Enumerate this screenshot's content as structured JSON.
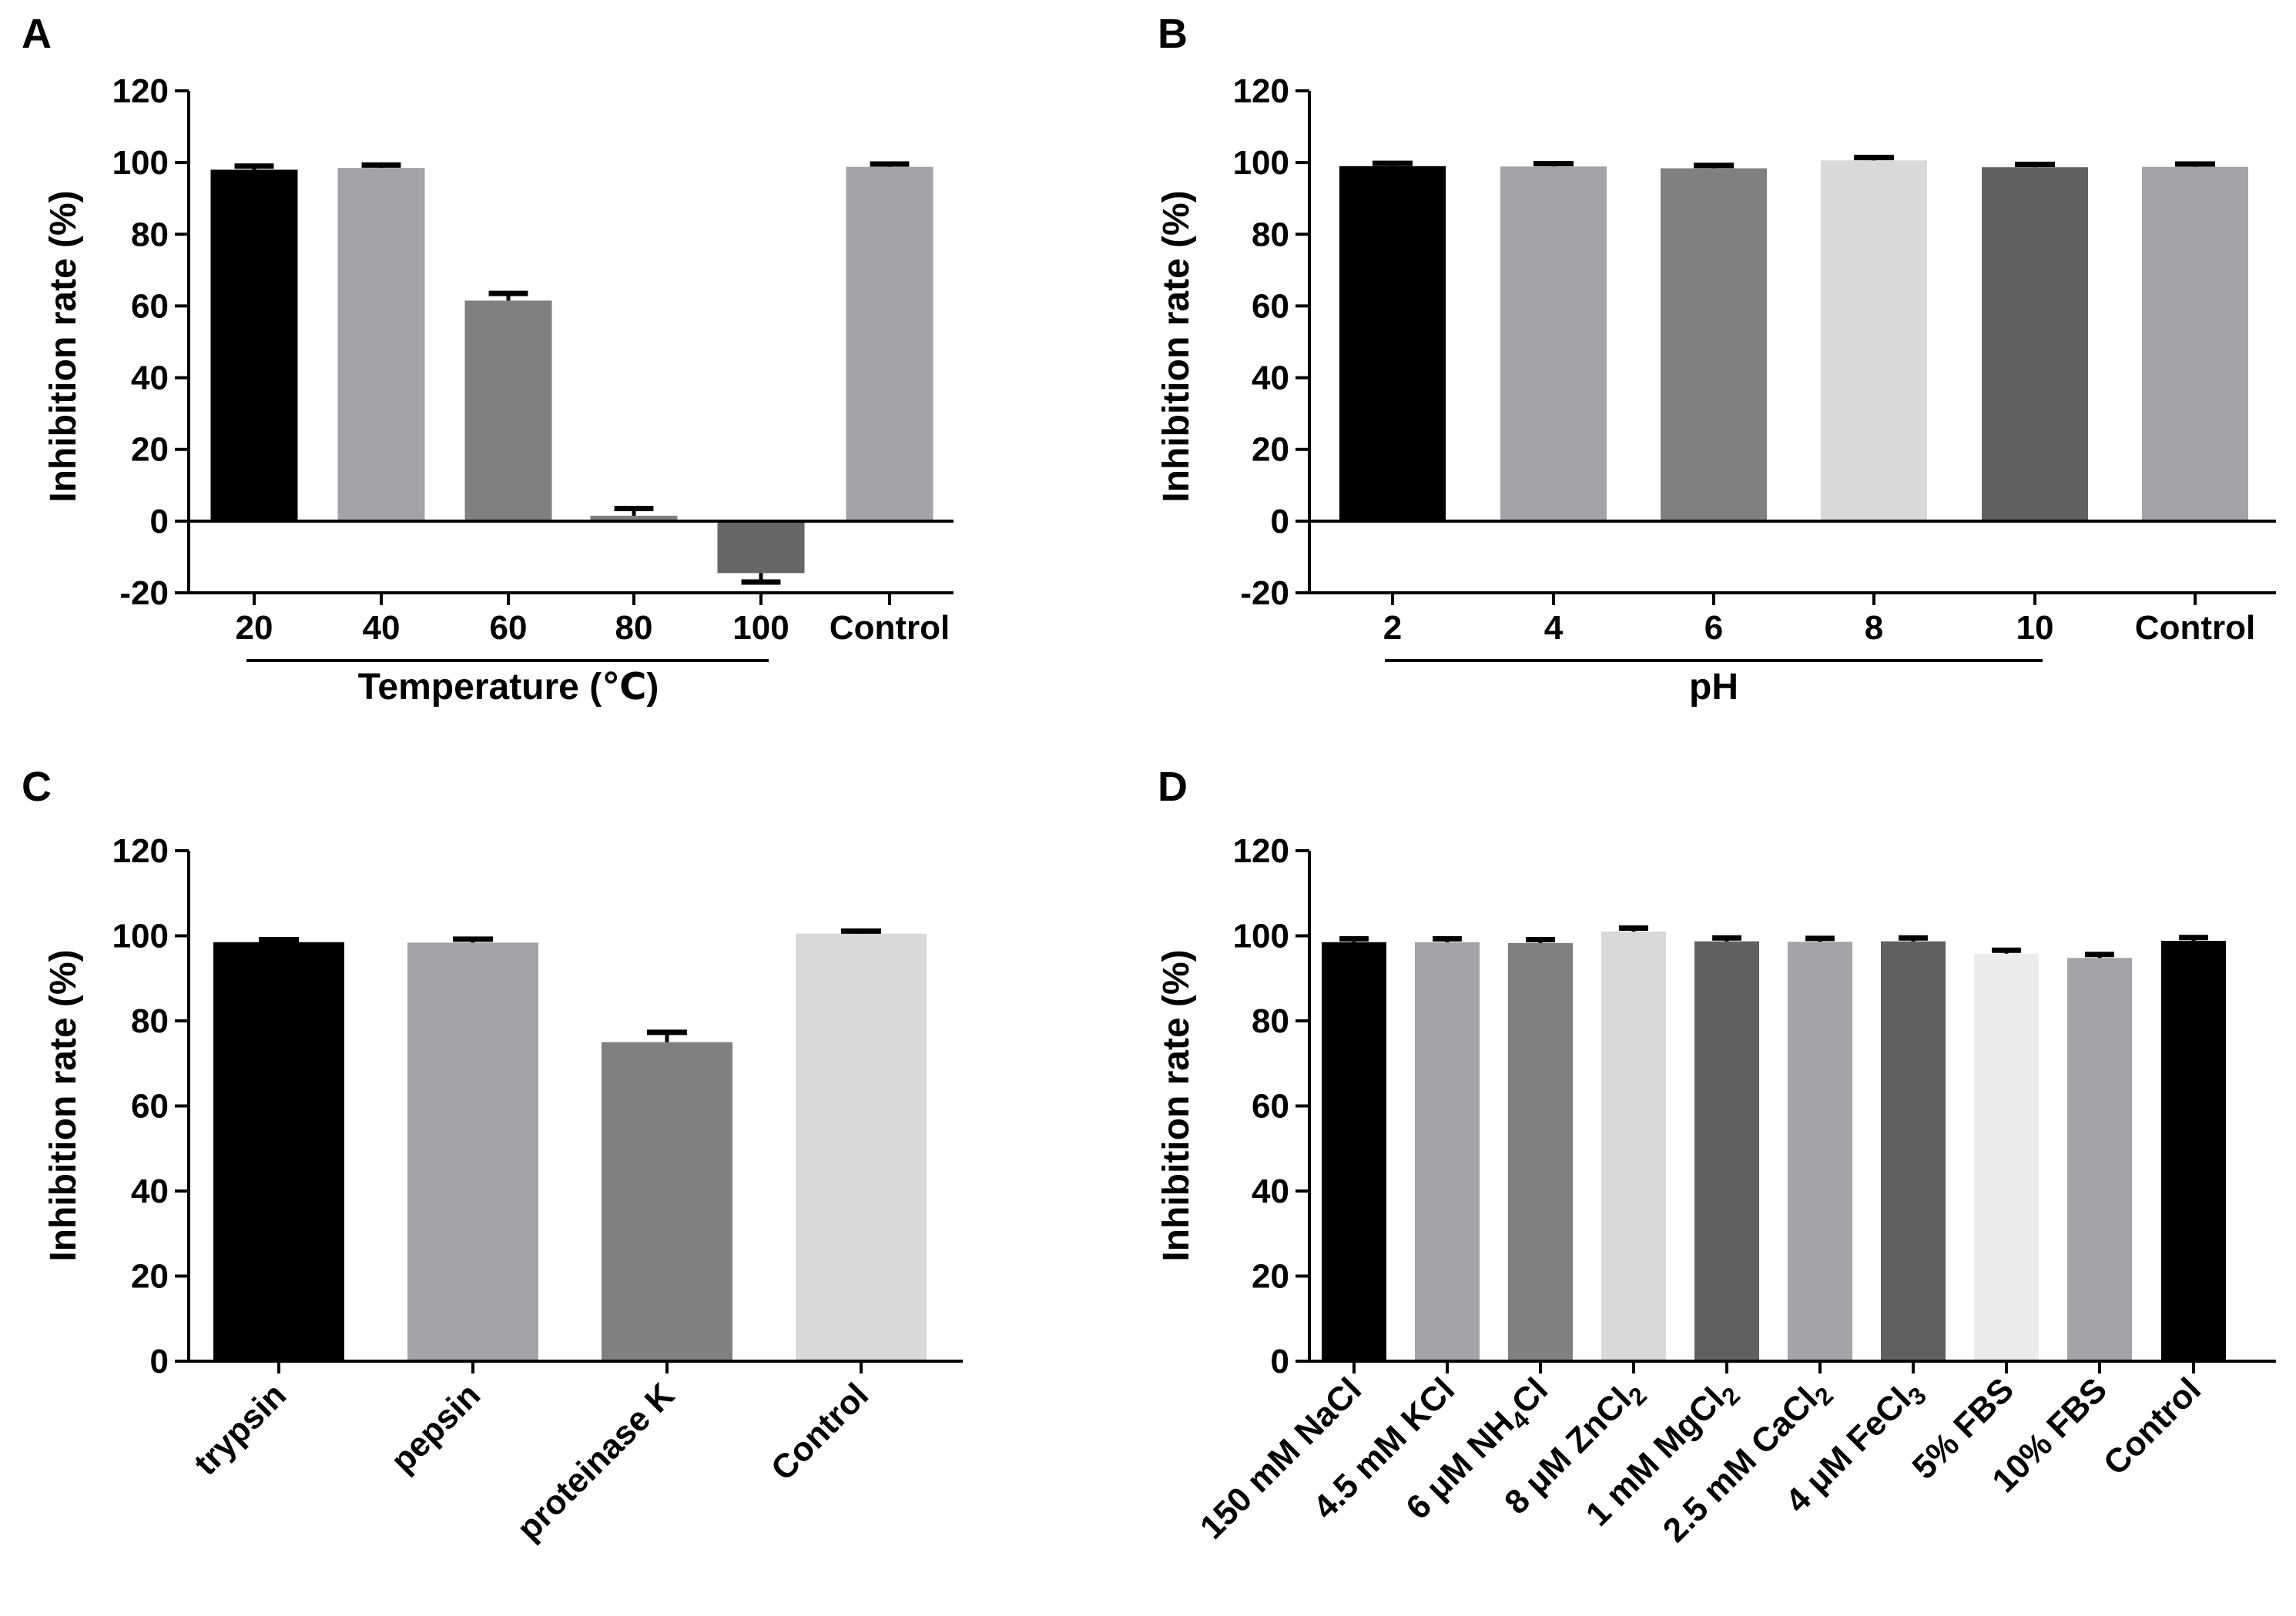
{
  "chart_data": [
    {
      "id": "A",
      "panel_label": "A",
      "type": "bar",
      "categories": [
        "20",
        "40",
        "60",
        "80",
        "100",
        "Control"
      ],
      "values": [
        98,
        98.5,
        61.5,
        1.5,
        -14.5,
        98.8
      ],
      "errors": [
        1,
        0.8,
        2,
        2,
        2.5,
        0.8
      ],
      "colors": [
        "#000000",
        "#a4a3a8",
        "#808080",
        "#808080",
        "#666666",
        "#a4a3a8"
      ],
      "ylabel": "Inhibition rate (%)",
      "xlabel": "Temperature (℃)",
      "ylim": [
        -20,
        120
      ],
      "yticks": [
        -20,
        0,
        20,
        40,
        60,
        80,
        100,
        120
      ],
      "group_line": [
        0,
        4
      ]
    },
    {
      "id": "B",
      "panel_label": "B",
      "type": "bar",
      "categories": [
        "2",
        "4",
        "6",
        "8",
        "10",
        "Control"
      ],
      "values": [
        99,
        98.9,
        98.4,
        100.6,
        98.7,
        98.8
      ],
      "errors": [
        0.8,
        0.8,
        0.8,
        0.8,
        0.8,
        0.8
      ],
      "colors": [
        "#000000",
        "#a4a3a8",
        "#808080",
        "#d9d9d9",
        "#616161",
        "#a4a3a8"
      ],
      "ylabel": "Inhibition rate (%)",
      "xlabel": "pH",
      "ylim": [
        -20,
        120
      ],
      "yticks": [
        -20,
        0,
        20,
        40,
        60,
        80,
        100,
        120
      ],
      "group_line": [
        0,
        4
      ]
    },
    {
      "id": "C",
      "panel_label": "C",
      "type": "bar",
      "categories": [
        "trypsin",
        "pepsin",
        "proteinase K",
        "Control"
      ],
      "values": [
        98.5,
        98.4,
        75,
        100.5
      ],
      "errors": [
        0.6,
        0.8,
        2.3,
        0.6
      ],
      "colors": [
        "#000000",
        "#a4a3a8",
        "#808080",
        "#d9d9d9"
      ],
      "ylabel": "Inhibition rate (%)",
      "ylim": [
        0,
        120
      ],
      "yticks": [
        0,
        20,
        40,
        60,
        80,
        100,
        120
      ]
    },
    {
      "id": "D",
      "panel_label": "D",
      "type": "bar",
      "categories": [
        {
          "main": "150 mM NaCl"
        },
        {
          "main": "4.5 mM KCl"
        },
        {
          "main": "6 μM NH",
          "sub": "4",
          "tail": "Cl"
        },
        {
          "main": "8 μM ZnCl",
          "sub": "2"
        },
        {
          "main": "1 mM MgCl",
          "sub": "2"
        },
        {
          "main": "2.5 mM CaCl",
          "sub": "2"
        },
        {
          "main": "4 μM FeCl",
          "sub": "3"
        },
        {
          "main": "5% FBS"
        },
        {
          "main": "10% FBS"
        },
        {
          "main": "Control"
        }
      ],
      "values": [
        98.5,
        98.5,
        98.3,
        101,
        98.7,
        98.6,
        98.7,
        95.8,
        94.8,
        98.8
      ],
      "errors": [
        0.8,
        0.8,
        0.8,
        0.8,
        0.8,
        0.8,
        0.8,
        0.8,
        0.8,
        0.8
      ],
      "colors": [
        "#000000",
        "#a4a3a8",
        "#808080",
        "#d9d9d9",
        "#616161",
        "#a4a3a8",
        "#616161",
        "#ececec",
        "#a4a3a8",
        "#000000"
      ],
      "ylabel": "Inhibition rate (%)",
      "ylim": [
        0,
        120
      ],
      "yticks": [
        0,
        20,
        40,
        60,
        80,
        100,
        120
      ]
    }
  ]
}
